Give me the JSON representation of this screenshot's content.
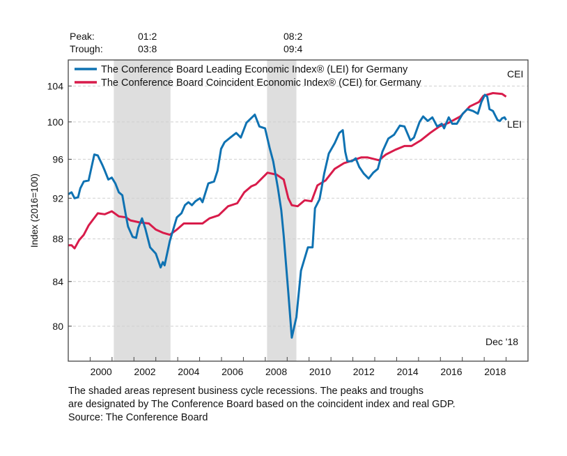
{
  "chart_data": {
    "type": "line",
    "title": "",
    "xlabel": "",
    "ylabel": "Index (2016=100)",
    "yscale": "log",
    "xlim": [
      1999,
      2020
    ],
    "ylim": [
      77,
      107
    ],
    "yticks": [
      80,
      84,
      88,
      92,
      96,
      100,
      104
    ],
    "xtick_labels": [
      "2000",
      "2002",
      "2004",
      "2006",
      "2008",
      "2010",
      "2012",
      "2014",
      "2016",
      "2018"
    ],
    "grid": true,
    "legend_placement": "top-left",
    "header": {
      "peak_label": "Peak:",
      "trough_label": "Trough:"
    },
    "recessions": [
      {
        "peak": "01:2",
        "trough": "03:8",
        "start": 2001.08,
        "end": 2003.67
      },
      {
        "peak": "08:2",
        "trough": "09:4",
        "start": 2008.08,
        "end": 2009.42
      }
    ],
    "annotations": {
      "cei": "CEI",
      "lei": "LEI",
      "date": "Dec '18"
    },
    "series": [
      {
        "name": "The Conference Board Leading Economic Index® (LEI) for Germany",
        "color": "#0f72b2",
        "x": [
          1999.0,
          1999.15,
          1999.29,
          1999.45,
          1999.55,
          1999.71,
          1999.93,
          2000.19,
          2000.35,
          2000.56,
          2000.67,
          2000.83,
          2000.99,
          2001.15,
          2001.31,
          2001.47,
          2001.63,
          2001.73,
          2001.94,
          2002.1,
          2002.2,
          2002.37,
          2002.52,
          2002.74,
          2003.0,
          2003.22,
          2003.32,
          2003.4,
          2003.64,
          2003.96,
          2004.17,
          2004.33,
          2004.49,
          2004.65,
          2004.81,
          2005.02,
          2005.13,
          2005.4,
          2005.66,
          2005.82,
          2005.98,
          2006.14,
          2006.4,
          2006.67,
          2006.88,
          2007.14,
          2007.52,
          2007.73,
          2007.99,
          2008.2,
          2008.36,
          2008.57,
          2008.73,
          2008.84,
          2009.05,
          2009.21,
          2009.42,
          2009.63,
          2009.95,
          2010.16,
          2010.27,
          2010.48,
          2010.69,
          2010.9,
          2011.17,
          2011.38,
          2011.54,
          2011.65,
          2011.75,
          2011.96,
          2012.13,
          2012.29,
          2012.5,
          2012.72,
          2012.93,
          2013.14,
          2013.35,
          2013.62,
          2013.88,
          2014.15,
          2014.36,
          2014.63,
          2014.79,
          2015.05,
          2015.21,
          2015.42,
          2015.63,
          2015.85,
          2016.06,
          2016.17,
          2016.38,
          2016.54,
          2016.75,
          2017.02,
          2017.23,
          2017.49,
          2017.71,
          2017.87,
          2018.03,
          2018.14,
          2018.24,
          2018.4,
          2018.61,
          2018.72,
          2018.82,
          2018.93,
          2019.0
        ],
        "values": [
          92.4,
          92.6,
          92.0,
          92.1,
          93.0,
          93.7,
          93.8,
          96.5,
          96.4,
          95.4,
          94.8,
          93.9,
          94.1,
          93.5,
          92.6,
          92.3,
          90.3,
          89.2,
          88.2,
          88.1,
          89.1,
          90.0,
          89.0,
          87.2,
          86.6,
          85.3,
          85.8,
          85.5,
          87.8,
          90.1,
          90.5,
          91.3,
          91.6,
          91.3,
          91.7,
          92.0,
          91.6,
          93.5,
          93.7,
          94.8,
          97.1,
          97.8,
          98.3,
          98.8,
          98.3,
          99.9,
          100.8,
          99.5,
          99.3,
          97.2,
          95.8,
          93.1,
          90.8,
          88.3,
          83.0,
          79.0,
          80.8,
          85.0,
          87.2,
          87.2,
          91.0,
          91.9,
          94.5,
          96.6,
          97.7,
          98.8,
          99.1,
          96.8,
          95.8,
          95.8,
          96.1,
          95.2,
          94.5,
          94.0,
          94.6,
          95.0,
          96.8,
          98.2,
          98.6,
          99.6,
          99.5,
          98.0,
          98.3,
          100.0,
          100.6,
          100.1,
          100.5,
          99.5,
          99.8,
          99.3,
          100.5,
          99.8,
          99.8,
          100.9,
          101.4,
          101.2,
          100.9,
          102.2,
          103.0,
          102.8,
          101.4,
          101.2,
          100.2,
          100.1,
          100.4,
          100.5,
          100.2
        ]
      },
      {
        "name": "The Conference Board Coincident Economic Index® (CEI) for Germany",
        "color": "#d81b4a",
        "x": [
          1999.0,
          1999.15,
          1999.29,
          1999.5,
          1999.71,
          1999.93,
          2000.14,
          2000.35,
          2000.67,
          2000.99,
          2001.31,
          2001.63,
          2001.84,
          2002.26,
          2002.68,
          2003.0,
          2003.32,
          2003.64,
          2003.96,
          2004.28,
          2004.7,
          2005.13,
          2005.45,
          2005.87,
          2006.3,
          2006.72,
          2007.04,
          2007.36,
          2007.57,
          2008.1,
          2008.52,
          2008.84,
          2009.05,
          2009.21,
          2009.48,
          2009.8,
          2010.11,
          2010.38,
          2010.75,
          2011.17,
          2011.6,
          2012.02,
          2012.39,
          2012.66,
          2013.19,
          2013.51,
          2013.94,
          2014.36,
          2014.68,
          2015.1,
          2015.53,
          2015.95,
          2016.38,
          2016.91,
          2017.34,
          2017.76,
          2017.97,
          2018.4,
          2018.82,
          2019.0
        ],
        "values": [
          87.4,
          87.4,
          87.1,
          87.9,
          88.4,
          89.3,
          89.9,
          90.5,
          90.4,
          90.7,
          90.2,
          90.1,
          89.8,
          89.6,
          89.5,
          88.9,
          88.6,
          88.4,
          88.9,
          89.5,
          89.5,
          89.5,
          90.0,
          90.3,
          91.2,
          91.5,
          92.6,
          93.2,
          93.4,
          94.6,
          94.4,
          93.9,
          92.0,
          91.3,
          91.2,
          91.8,
          91.7,
          93.3,
          93.8,
          95.0,
          95.6,
          95.9,
          96.2,
          96.2,
          95.9,
          96.5,
          97.0,
          97.4,
          97.4,
          98.0,
          98.8,
          99.5,
          99.9,
          100.6,
          101.7,
          102.2,
          102.9,
          103.2,
          103.1,
          102.8
        ]
      }
    ]
  },
  "footnote": {
    "line1": "The shaded areas represent business cycle recessions. The peaks and troughs",
    "line2": "are designated by The Conference Board based on the coincident index and real GDP.",
    "line3": "Source: The Conference Board"
  }
}
